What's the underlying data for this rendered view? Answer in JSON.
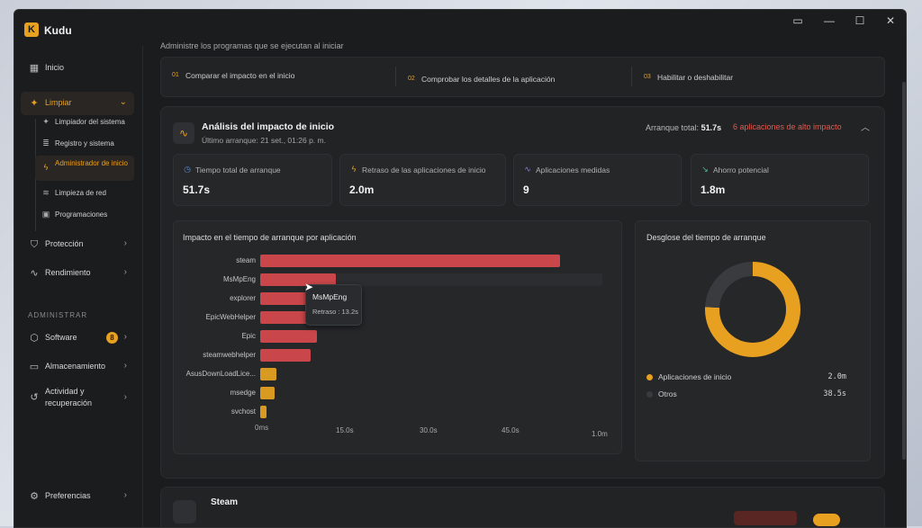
{
  "app": {
    "title": "Kudu",
    "logo": "K"
  },
  "window_controls": [
    {
      "name": "display-icon",
      "glyph": "▭"
    },
    {
      "name": "minimize-icon",
      "glyph": "—"
    },
    {
      "name": "maximize-icon",
      "glyph": "☐"
    },
    {
      "name": "close-icon",
      "glyph": "✕"
    }
  ],
  "sidebar": {
    "inicio": "Inicio",
    "limpiar": "Limpiar",
    "sub": [
      "Limpiador del sistema",
      "Registro y sistema",
      "Administrador de inicio",
      "Limpieza de red",
      "Programaciones"
    ],
    "proteccion": "Protección",
    "rendimiento": "Rendimiento",
    "section_admin": "ADMINISTRAR",
    "software": "Software",
    "software_badge": "8",
    "almacenamiento": "Almacenamiento",
    "actividad": "Actividad y recuperación",
    "preferencias": "Preferencias"
  },
  "main": {
    "subtitle": "Administre los programas que se ejecutan al iniciar",
    "steps": [
      {
        "num": "01",
        "label": "Comparar el impacto en el inicio"
      },
      {
        "num": "02",
        "label": "Comprobar los detalles de la aplicación"
      },
      {
        "num": "03",
        "label": "Habilitar o deshabilitar"
      }
    ]
  },
  "analysis": {
    "title": "Análisis del impacto de inicio",
    "last_boot": "Último arranque: 21 set., 01:26 p. m.",
    "total_label": "Arranque total:",
    "total_value": "51.7s",
    "high_impact": "6 aplicaciones de alto impacto",
    "stats": [
      {
        "label": "Tiempo total de arranque",
        "value": "51.7s",
        "icon": "clock-icon",
        "color": "#5b8ed6"
      },
      {
        "label": "Retraso de las aplicaciones de inicio",
        "value": "2.0m",
        "icon": "bolt-icon",
        "color": "#e8a020"
      },
      {
        "label": "Aplicaciones medidas",
        "value": "9",
        "icon": "pulse-icon",
        "color": "#8e7fd6"
      },
      {
        "label": "Ahorro potencial",
        "value": "1.8m",
        "icon": "trend-down-icon",
        "color": "#4cc38a"
      }
    ]
  },
  "chart_data": {
    "type": "bar",
    "orientation": "horizontal",
    "title": "Impacto en el tiempo de arranque por aplicación",
    "categories": [
      "steam",
      "MsMpEng",
      "explorer",
      "EpicWebHelper",
      "Epic",
      "steamwebhelper",
      "AsusDownLoadLice...",
      "msedge",
      "svchost"
    ],
    "values_seconds": [
      52.6,
      13.2,
      11.0,
      10.2,
      10.0,
      8.8,
      2.9,
      2.6,
      1.1
    ],
    "colors": [
      "#c9474a",
      "#c9474a",
      "#c9474a",
      "#c9474a",
      "#c9474a",
      "#c9474a",
      "#d99a22",
      "#d99a22",
      "#d99a22"
    ],
    "x_tick_labels": [
      "0ms",
      "15.0s",
      "30.0s",
      "45.0s",
      "1.0m"
    ],
    "x_range_seconds": [
      0,
      60
    ],
    "tooltip": {
      "title": "MsMpEng",
      "text": "Retraso : 13.2s"
    }
  },
  "breakdown": {
    "title": "Desglose del tiempo de arranque",
    "items": [
      {
        "name": "Aplicaciones de inicio",
        "value": "2.0m",
        "seconds": 120,
        "color": "#e8a020"
      },
      {
        "name": "Otros",
        "value": "38.5s",
        "seconds": 38.5,
        "color": "#3a3b3e"
      }
    ]
  },
  "steam_card": {
    "title": "Steam"
  }
}
